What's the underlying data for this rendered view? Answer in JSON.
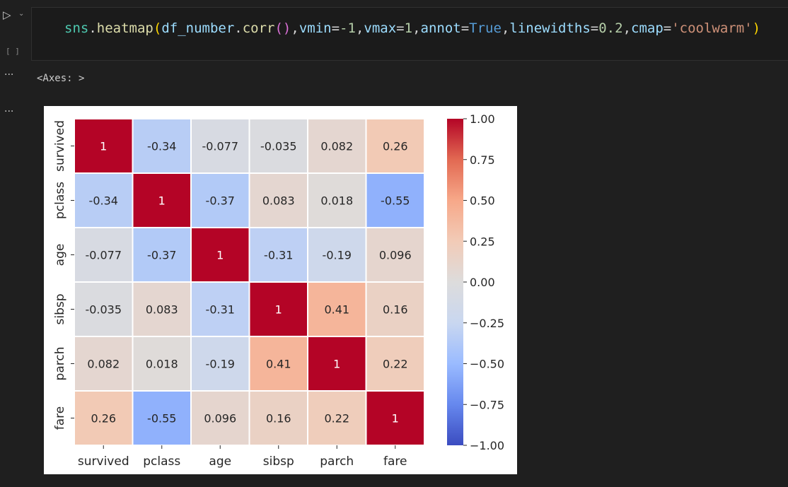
{
  "gutter": {
    "run_icon": "▷",
    "chevron": "⌄",
    "exec_count": "[ ]",
    "more_1": "···",
    "more_2": "···"
  },
  "code": {
    "t1": "sns",
    "t2": ".",
    "t3": "heatmap",
    "t4": "(",
    "t5": "df_number",
    "t6": ".",
    "t7": "corr",
    "t8": "()",
    "t9": ",",
    "t10": "vmin",
    "t11": "=",
    "t12": "-1",
    "t13": ",",
    "t14": "vmax",
    "t15": "=",
    "t16": "1",
    "t17": ",",
    "t18": "annot",
    "t19": "=",
    "t20": "True",
    "t21": ",",
    "t22": "linewidths",
    "t23": "=",
    "t24": "0.2",
    "t25": ",",
    "t26": "cmap",
    "t27": "=",
    "t28": "'coolwarm'",
    "t29": ")"
  },
  "output": {
    "text": "<Axes: >"
  },
  "chart_data": {
    "type": "heatmap",
    "rows": [
      "survived",
      "pclass",
      "age",
      "sibsp",
      "parch",
      "fare"
    ],
    "columns": [
      "survived",
      "pclass",
      "age",
      "sibsp",
      "parch",
      "fare"
    ],
    "annotations": [
      [
        "1",
        "-0.34",
        "-0.077",
        "-0.035",
        "0.082",
        "0.26"
      ],
      [
        "-0.34",
        "1",
        "-0.37",
        "0.083",
        "0.018",
        "-0.55"
      ],
      [
        "-0.077",
        "-0.37",
        "1",
        "-0.31",
        "-0.19",
        "0.096"
      ],
      [
        "-0.035",
        "0.083",
        "-0.31",
        "1",
        "0.41",
        "0.16"
      ],
      [
        "0.082",
        "0.018",
        "-0.19",
        "0.41",
        "1",
        "0.22"
      ],
      [
        "0.26",
        "-0.55",
        "0.096",
        "0.16",
        "0.22",
        "1"
      ]
    ],
    "vmin": -1,
    "vmax": 1,
    "cmap": "coolwarm",
    "colorbar_ticks": [
      "1.00",
      "0.75",
      "0.50",
      "0.25",
      "0.00",
      "−0.25",
      "−0.50",
      "−0.75",
      "−1.00"
    ],
    "colorbar_tick_values": [
      1,
      0.75,
      0.5,
      0.25,
      0,
      -0.25,
      -0.5,
      -0.75,
      -1
    ],
    "colorbar_colors": [
      "#3b4cc0",
      "#6688ee",
      "#9abbff",
      "#c9d7f0",
      "#dddcdc",
      "#f2cbb7",
      "#f7a889",
      "#e26952",
      "#b40426"
    ]
  }
}
